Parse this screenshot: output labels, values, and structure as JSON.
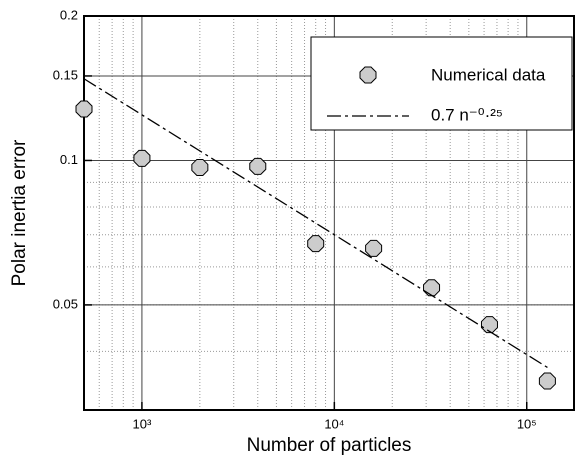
{
  "chart_data": {
    "type": "scatter",
    "x_label": "Number of particles",
    "y_label": "Polar inertia error",
    "x_scale": "log",
    "y_scale": "log",
    "xlim": [
      500,
      176000
    ],
    "ylim": [
      0.0302,
      0.2
    ],
    "xticks": [
      {
        "value": 1000,
        "label": "10³"
      },
      {
        "value": 10000,
        "label": "10⁴"
      },
      {
        "value": 100000,
        "label": "10⁵"
      }
    ],
    "yticks": [
      0.05,
      0.1,
      0.15,
      0.2
    ],
    "grid": true,
    "legend": "upper right",
    "series": [
      {
        "name": "Numerical data",
        "kind": "marker",
        "color": "#cccccc",
        "x": [
          500,
          1000,
          2000,
          4000,
          8000,
          16000,
          32000,
          64000,
          128000
        ],
        "values": [
          0.128,
          0.101,
          0.0967,
          0.0972,
          0.0671,
          0.0656,
          0.0543,
          0.0455,
          0.0347
        ]
      },
      {
        "name": "0.7 n⁻⁰·²⁵",
        "kind": "dashdot",
        "color": "#000000",
        "x": [
          500,
          130000
        ],
        "values": [
          0.148,
          0.0369
        ]
      }
    ]
  }
}
